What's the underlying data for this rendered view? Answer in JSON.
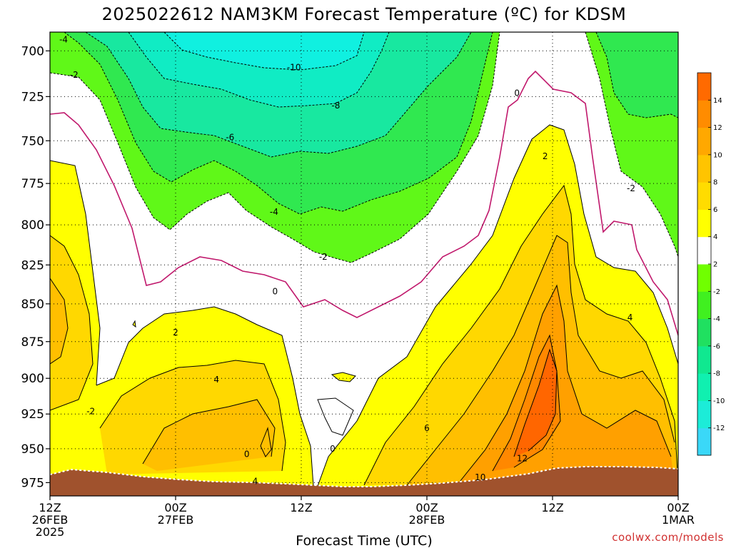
{
  "chart_data": {
    "type": "contour",
    "title": "2025022612 NAM3KM Forecast Temperature (ºC) for KDSM",
    "xlabel": "Forecast Time (UTC)",
    "ylabel": "",
    "credit": "coolwx.com/models",
    "y_axis": {
      "scale": "pressure",
      "ylim": [
        985,
        690
      ],
      "ticks": [
        700,
        725,
        750,
        775,
        800,
        825,
        850,
        875,
        900,
        925,
        950,
        975
      ],
      "tick_labels": [
        "700",
        "725",
        "750",
        "775",
        "800",
        "825",
        "850",
        "875",
        "900",
        "925",
        "950",
        "975"
      ]
    },
    "x_axis": {
      "xlim": [
        0,
        60
      ],
      "ticks": [
        0,
        12,
        24,
        36,
        48,
        60
      ],
      "tick_labels": [
        [
          "12Z",
          "26FEB",
          "2025"
        ],
        [
          "00Z",
          "27FEB"
        ],
        [
          "12Z"
        ],
        [
          "00Z",
          "28FEB"
        ],
        [
          "12Z"
        ],
        [
          "00Z",
          "1MAR"
        ]
      ]
    },
    "grid": true,
    "colorbar": {
      "levels": [
        -14,
        -12,
        -10,
        -8,
        -6,
        -4,
        -2,
        2,
        4,
        6,
        8,
        10,
        12,
        14,
        16
      ],
      "tick_labels": [
        "14",
        "12",
        "10",
        "8",
        "6",
        "4",
        "2",
        "-2",
        "-4",
        "-6",
        "-8",
        "-10",
        "-12"
      ],
      "colors": [
        "#3ad8f8",
        "#1cecd8",
        "#10f0b0",
        "#10e890",
        "#20e060",
        "#40f020",
        "#70ff00",
        "#ffffff",
        "#ffff00",
        "#ffdc00",
        "#ffc400",
        "#ffa800",
        "#ff8c00",
        "#ff6a00"
      ]
    },
    "contour_labels": [
      {
        "text": "-4",
        "t": 1.3,
        "p": 694
      },
      {
        "text": "-2",
        "t": 2.3,
        "p": 713
      },
      {
        "text": "-10",
        "t": 23.3,
        "p": 709
      },
      {
        "text": "-8",
        "t": 27.3,
        "p": 730
      },
      {
        "text": "-6",
        "t": 17.2,
        "p": 748
      },
      {
        "text": "-4",
        "t": 21.4,
        "p": 792
      },
      {
        "text": "-2",
        "t": 26.1,
        "p": 820
      },
      {
        "text": "0",
        "t": 21.5,
        "p": 842
      },
      {
        "text": "0",
        "t": 44.6,
        "p": 723
      },
      {
        "text": "2",
        "t": 47.3,
        "p": 759
      },
      {
        "text": "-2",
        "t": 55.5,
        "p": 778
      },
      {
        "text": "2",
        "t": 12.0,
        "p": 869
      },
      {
        "text": "4",
        "t": 15.9,
        "p": 901
      },
      {
        "text": "-2",
        "t": 3.9,
        "p": 923
      },
      {
        "text": "0",
        "t": 18.8,
        "p": 954
      },
      {
        "text": "0",
        "t": 27.0,
        "p": 950
      },
      {
        "text": "4",
        "t": 19.6,
        "p": 974
      },
      {
        "text": "6",
        "t": 36.0,
        "p": 935
      },
      {
        "text": "12",
        "t": 45.1,
        "p": 957
      },
      {
        "text": "10",
        "t": 41.1,
        "p": 971
      },
      {
        "text": "4",
        "t": 55.4,
        "p": 859
      }
    ]
  }
}
